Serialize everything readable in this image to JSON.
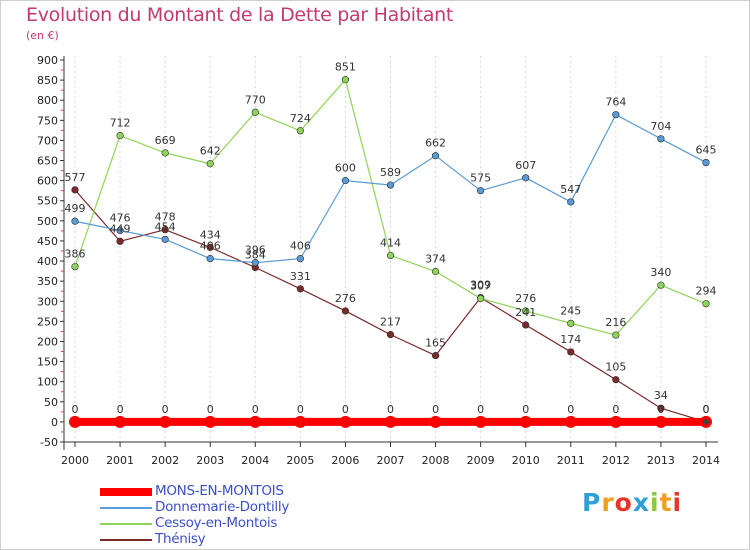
{
  "header": {
    "title": "Evolution du Montant de la Dette par Habitant",
    "unit": "(en €)"
  },
  "logo": {
    "text": "Proxiti",
    "colors": [
      "#2f9fd8",
      "#f0a020",
      "#e7352a",
      "#2f9fd8",
      "#8dc63f",
      "#f0a020",
      "#e7352a"
    ]
  },
  "chart_data": {
    "type": "line",
    "title": "Evolution du Montant de la Dette par Habitant",
    "subtitle": "(en €)",
    "x": [
      "2000",
      "2001",
      "2002",
      "2003",
      "2004",
      "2005",
      "2006",
      "2007",
      "2008",
      "2009",
      "2010",
      "2011",
      "2012",
      "2013",
      "2014"
    ],
    "yticks": [
      -50,
      0,
      50,
      100,
      150,
      200,
      250,
      300,
      350,
      400,
      450,
      500,
      550,
      600,
      650,
      700,
      750,
      800,
      850,
      900
    ],
    "ylim": [
      -50,
      900
    ],
    "grid": "vertical",
    "legend_position": "bottom-left",
    "series": [
      {
        "name": "MONS-EN-MONTOIS",
        "color": "#ff0000",
        "values": [
          0,
          0,
          0,
          0,
          0,
          0,
          0,
          0,
          0,
          0,
          0,
          0,
          0,
          0,
          0
        ],
        "labels": [
          "0",
          "0",
          "0",
          "0",
          "0",
          "0",
          "0",
          "0",
          "0",
          "0",
          "0",
          "0",
          "0",
          "0",
          "0"
        ]
      },
      {
        "name": "Donnemarie-Dontilly",
        "color": "#5b9bd5",
        "values": [
          499,
          476,
          454,
          406,
          396,
          406,
          600,
          589,
          662,
          575,
          607,
          547,
          764,
          704,
          645
        ],
        "labels": [
          "499",
          "476",
          "454",
          "406",
          "396",
          "406",
          "600",
          "589",
          "662",
          "575",
          "607",
          "547",
          "764",
          "704",
          "645"
        ]
      },
      {
        "name": "Cessoy-en-Montois",
        "color": "#8fd45a",
        "values": [
          386,
          712,
          669,
          642,
          770,
          724,
          851,
          414,
          374,
          307,
          276,
          245,
          216,
          340,
          294
        ],
        "labels": [
          "386",
          "712",
          "669",
          "642",
          "770",
          "724",
          "851",
          "414",
          "374",
          "307",
          "276",
          "245",
          "216",
          "340",
          "294"
        ]
      },
      {
        "name": "Thénisy",
        "color": "#7b2a2a",
        "values": [
          577,
          449,
          478,
          434,
          384,
          331,
          276,
          217,
          165,
          309,
          241,
          174,
          105,
          34,
          0
        ],
        "labels": [
          "577",
          "449",
          "478",
          "434",
          "384",
          "331",
          "276",
          "217",
          "165",
          "309",
          "241",
          "174",
          "105",
          "34",
          "0"
        ]
      }
    ]
  }
}
